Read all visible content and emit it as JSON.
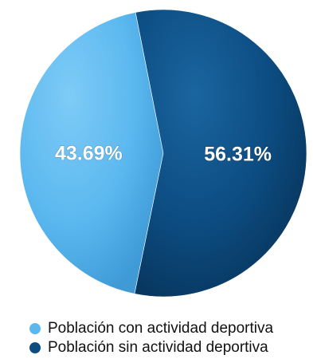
{
  "chart_data": {
    "type": "pie",
    "slices": [
      {
        "name": "Población con actividad deportiva",
        "value": 43.69,
        "label": "43.69%",
        "color": "#5bb8ef"
      },
      {
        "name": "Población sin actividad deportiva",
        "value": 56.31,
        "label": "56.31%",
        "color": "#0c4c81"
      }
    ],
    "legend": {
      "position": "bottom-left",
      "items": [
        "Población con actividad deportiva",
        "Población sin actividad deportiva"
      ]
    }
  }
}
